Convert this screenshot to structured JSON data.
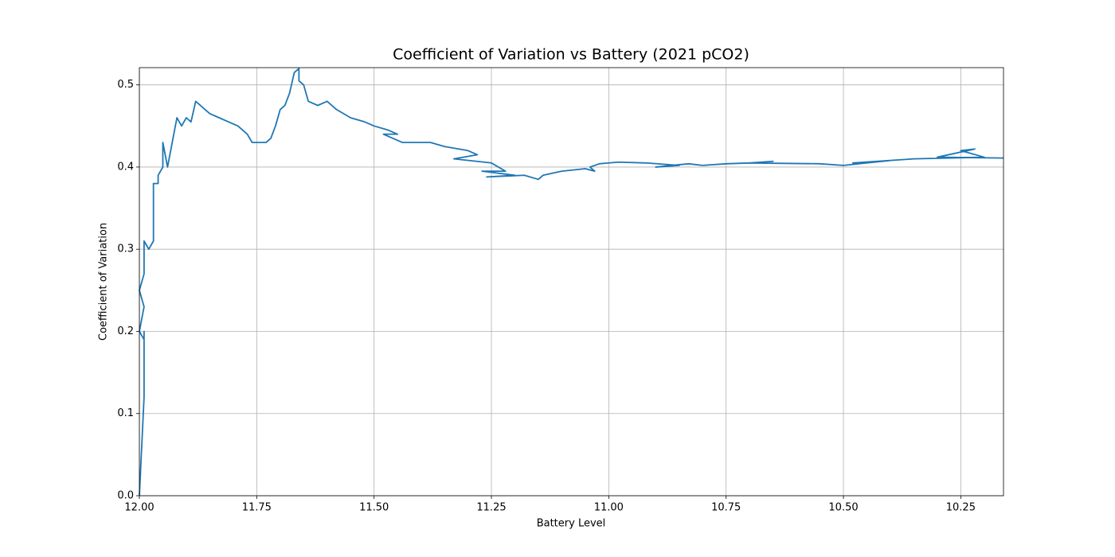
{
  "chart_data": {
    "type": "line",
    "title": "Coefficient of Variation vs Battery (2021 pCO2)",
    "x_label": "Battery Level",
    "y_label": "Coefficient of Variation",
    "grid": true,
    "xlim": [
      12.0,
      10.159
    ],
    "ylim": [
      0,
      0.521
    ],
    "xticks": [
      {
        "value": 12,
        "label": "12.00"
      },
      11.75,
      {
        "value": 11.5,
        "label": "11.50"
      },
      11.25,
      {
        "value": 11,
        "label": "11.00"
      },
      10.75,
      {
        "value": 10.5,
        "label": "10.50"
      },
      10.25
    ],
    "yticks": [
      {
        "value": 0,
        "label": "0.0"
      },
      0.1,
      0.2,
      0.3,
      0.4,
      0.5
    ],
    "series": [
      {
        "name": "Coefficient of Variation",
        "color": "#1f77b4",
        "x": [
          12.0,
          11.99,
          11.99,
          11.99,
          12.0,
          11.99,
          12.0,
          11.99,
          11.99,
          11.98,
          11.97,
          11.97,
          11.96,
          11.96,
          11.95,
          11.95,
          11.94,
          11.93,
          11.92,
          11.91,
          11.9,
          11.89,
          11.88,
          11.86,
          11.85,
          11.83,
          11.81,
          11.79,
          11.77,
          11.76,
          11.73,
          11.72,
          11.71,
          11.7,
          11.69,
          11.68,
          11.67,
          11.66,
          11.66,
          11.65,
          11.64,
          11.62,
          11.6,
          11.58,
          11.55,
          11.52,
          11.5,
          11.47,
          11.45,
          11.48,
          11.44,
          11.38,
          11.35,
          11.3,
          11.28,
          11.33,
          11.25,
          11.22,
          11.27,
          11.2,
          11.26,
          11.18,
          11.15,
          11.14,
          11.1,
          11.05,
          11.03,
          11.04,
          11.02,
          10.98,
          10.92,
          10.85,
          10.9,
          10.83,
          10.8,
          10.75,
          10.7,
          10.65,
          10.7,
          10.55,
          10.5,
          10.45,
          10.4,
          10.48,
          10.35,
          10.2,
          10.25,
          10.22,
          10.3,
          10.159
        ],
        "values": [
          0.0,
          0.12,
          0.2,
          0.19,
          0.2,
          0.23,
          0.25,
          0.27,
          0.31,
          0.3,
          0.31,
          0.38,
          0.38,
          0.39,
          0.4,
          0.43,
          0.4,
          0.43,
          0.46,
          0.45,
          0.46,
          0.455,
          0.48,
          0.47,
          0.465,
          0.46,
          0.455,
          0.45,
          0.44,
          0.43,
          0.43,
          0.435,
          0.45,
          0.47,
          0.475,
          0.49,
          0.515,
          0.52,
          0.505,
          0.5,
          0.48,
          0.475,
          0.48,
          0.47,
          0.46,
          0.455,
          0.45,
          0.445,
          0.44,
          0.44,
          0.43,
          0.43,
          0.425,
          0.42,
          0.415,
          0.41,
          0.405,
          0.395,
          0.395,
          0.39,
          0.388,
          0.39,
          0.385,
          0.39,
          0.395,
          0.398,
          0.395,
          0.4,
          0.404,
          0.406,
          0.405,
          0.402,
          0.4,
          0.404,
          0.402,
          0.404,
          0.405,
          0.407,
          0.405,
          0.404,
          0.402,
          0.405,
          0.408,
          0.405,
          0.41,
          0.412,
          0.42,
          0.422,
          0.412,
          0.411
        ]
      }
    ]
  }
}
